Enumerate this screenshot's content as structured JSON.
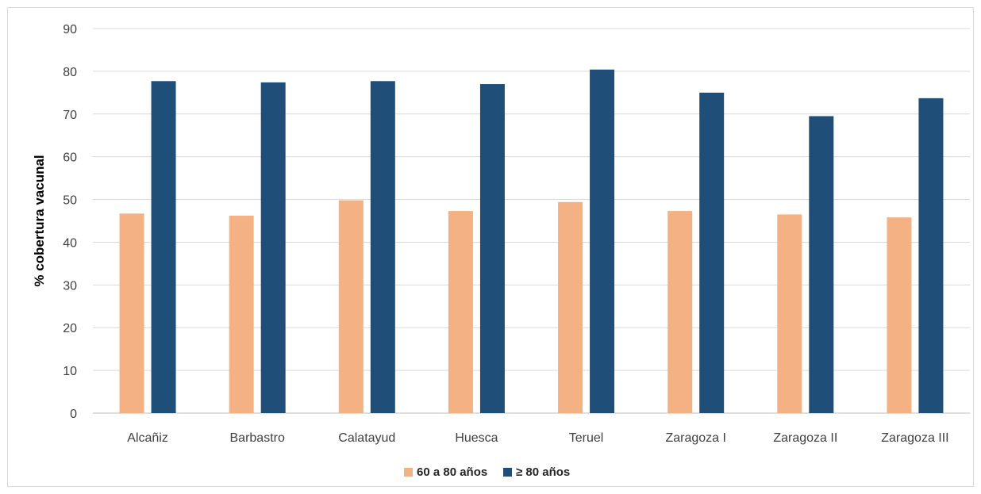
{
  "chart_data": {
    "type": "bar",
    "ylabel": "% cobertura vacunal",
    "xlabel": "",
    "ylim": [
      0,
      90
    ],
    "yticks": [
      0,
      10,
      20,
      30,
      40,
      50,
      60,
      70,
      80,
      90
    ],
    "grid": true,
    "legend_position": "bottom",
    "categories": [
      "Alcañiz",
      "Barbastro",
      "Calatayud",
      "Huesca",
      "Teruel",
      "Zaragoza I",
      "Zaragoza II",
      "Zaragoza III"
    ],
    "series": [
      {
        "name": "60 a 80 años",
        "color": "#f4b183",
        "values": [
          46.7,
          46.2,
          49.8,
          47.3,
          49.4,
          47.3,
          46.5,
          45.8
        ]
      },
      {
        "name": "≥ 80 años",
        "color": "#1f4e79",
        "values": [
          77.7,
          77.4,
          77.7,
          77.0,
          80.4,
          75.0,
          69.5,
          73.7
        ]
      }
    ]
  }
}
